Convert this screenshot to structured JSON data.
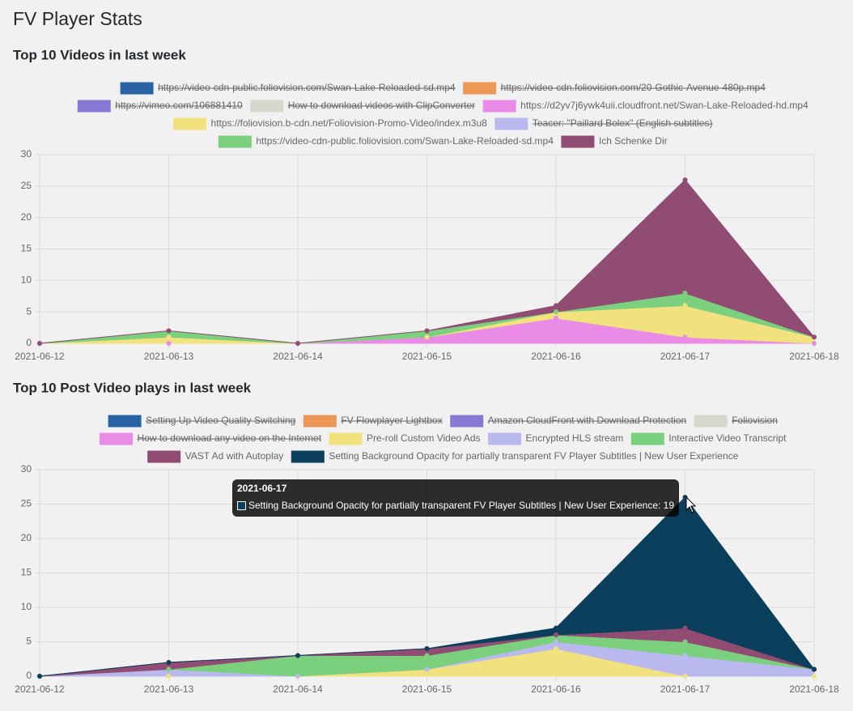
{
  "page_title": "FV Player Stats",
  "chart_data": [
    {
      "type": "area",
      "stacked": true,
      "title": "Top 10 Videos in last week",
      "x": [
        "2021-06-12",
        "2021-06-13",
        "2021-06-14",
        "2021-06-15",
        "2021-06-16",
        "2021-06-17",
        "2021-06-18"
      ],
      "ylim": [
        0,
        30
      ],
      "yticks": [
        0,
        5,
        10,
        15,
        20,
        25,
        30
      ],
      "grid": true,
      "series": [
        {
          "name": "https://video-cdn-public.foliovision.com/Swan-Lake-Reloaded-sd.mp4",
          "color": "#2a62a6",
          "hidden": true
        },
        {
          "name": "https://video-cdn.foliovision.com/20-Gothic-Avenue-480p.mp4",
          "color": "#ee9858",
          "hidden": true
        },
        {
          "name": "https://vimeo.com/106881410",
          "color": "#8977d5",
          "hidden": true
        },
        {
          "name": "How to download videos with ClipConverter",
          "color": "#d6d8ce",
          "hidden": true
        },
        {
          "name": "https://d2yv7j6ywk4uii.cloudfront.net/Swan-Lake-Reloaded-hd.mp4",
          "color": "#e98be7",
          "values": [
            0,
            0,
            0,
            1,
            4,
            1,
            0
          ]
        },
        {
          "name": "https://foliovision.b-cdn.net/Foliovision-Promo-Video/index.m3u8",
          "color": "#f1e27d",
          "values": [
            0,
            1,
            0,
            0,
            1,
            5,
            1
          ]
        },
        {
          "name": "Teacer: \"Paillard Bolex\" (English subtitles)",
          "color": "#b9b9ef",
          "hidden": true
        },
        {
          "name": "https://video-cdn-public.foliovision.com/Swan-Lake-Reloaded-sd.mp4",
          "color": "#7bd07e",
          "values": [
            0,
            1,
            0,
            1,
            0,
            2,
            0
          ]
        },
        {
          "name": "Ich Schenke Dir",
          "color": "#914c73",
          "values": [
            0,
            0,
            0,
            0,
            1,
            18,
            0
          ]
        }
      ]
    },
    {
      "type": "area",
      "stacked": true,
      "title": "Top 10 Post Video plays in last week",
      "x": [
        "2021-06-12",
        "2021-06-13",
        "2021-06-14",
        "2021-06-15",
        "2021-06-16",
        "2021-06-17",
        "2021-06-18"
      ],
      "ylim": [
        0,
        30
      ],
      "yticks": [
        0,
        5,
        10,
        15,
        20,
        25,
        30
      ],
      "grid": true,
      "series": [
        {
          "name": "Setting Up Video Quality Switching",
          "color": "#2a62a6",
          "hidden": true
        },
        {
          "name": "FV Flowplayer Lightbox",
          "color": "#ee9858",
          "hidden": true
        },
        {
          "name": "Amazon CloudFront with Download Protection",
          "color": "#8977d5",
          "hidden": true
        },
        {
          "name": "Foliovision",
          "color": "#d6d8ce",
          "hidden": true
        },
        {
          "name": "How to download any video on the Internet",
          "color": "#e98be7",
          "hidden": true
        },
        {
          "name": "Pre-roll Custom Video Ads",
          "color": "#f1e27d",
          "values": [
            0,
            0,
            0,
            1,
            4,
            0,
            0
          ]
        },
        {
          "name": "Encrypted HLS stream",
          "color": "#b9b9ef",
          "values": [
            0,
            1,
            0,
            0,
            1,
            3,
            1
          ]
        },
        {
          "name": "Interactive Video Transcript",
          "color": "#7bd07e",
          "values": [
            0,
            0,
            3,
            2,
            1,
            2,
            0
          ]
        },
        {
          "name": "VAST Ad with Autoplay",
          "color": "#914c73",
          "values": [
            0,
            1,
            0,
            1,
            0,
            2,
            0
          ]
        },
        {
          "name": "Setting Background Opacity for partially transparent FV Player Subtitles | New User Experience",
          "color": "#0c3f5c",
          "values": [
            0,
            0,
            0,
            0,
            1,
            19,
            0
          ]
        }
      ],
      "tooltip": {
        "label": "Setting Background Opacity for partially transparent FV Player Subtitles | New User Experience: 19"
      }
    }
  ]
}
